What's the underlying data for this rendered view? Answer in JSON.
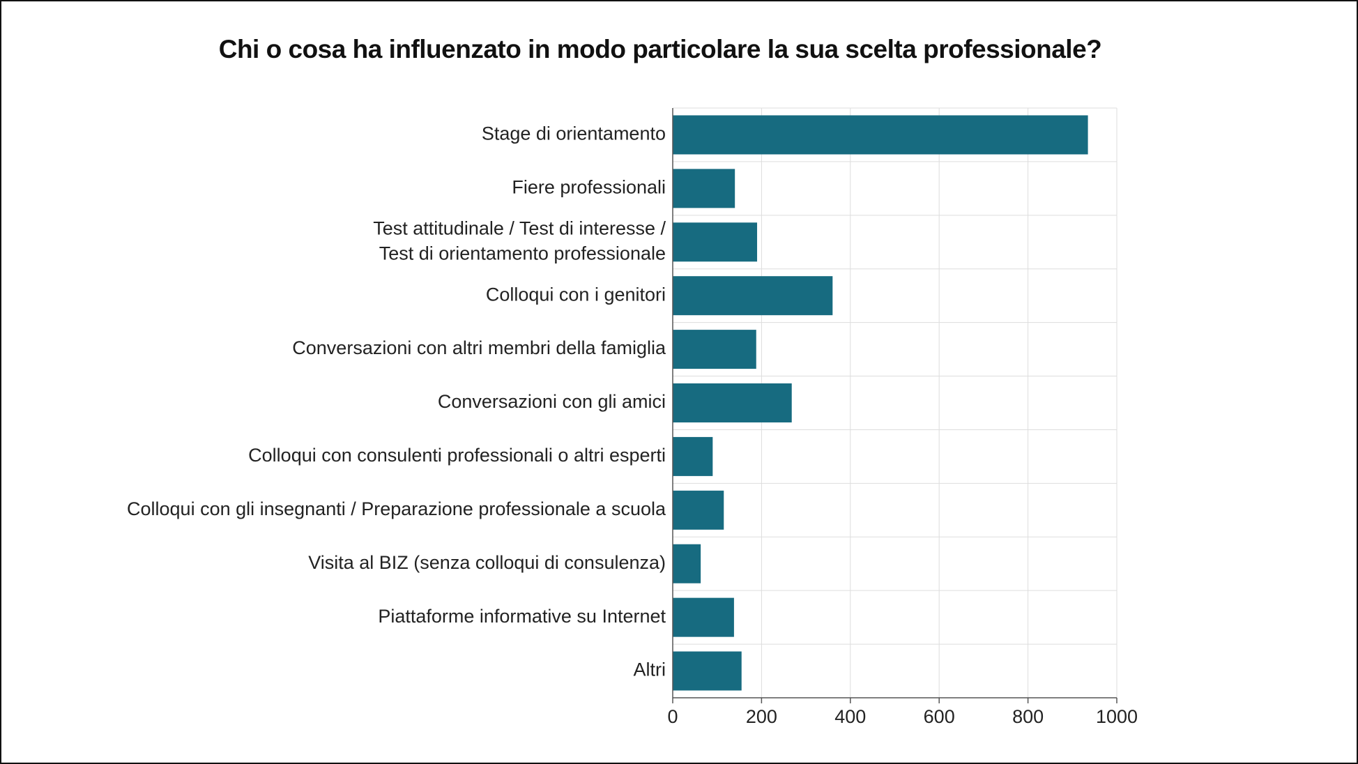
{
  "chart_data": {
    "type": "bar",
    "orientation": "horizontal",
    "title": "Chi o cosa ha influenzato in modo particolare la sua scelta professionale?",
    "categories": [
      [
        "Stage di orientamento"
      ],
      [
        "Fiere professionali"
      ],
      [
        "Test attitudinale / Test di interesse /",
        "Test di orientamento professionale"
      ],
      [
        "Colloqui con i genitori"
      ],
      [
        "Conversazioni con altri membri della famiglia"
      ],
      [
        "Conversazioni con gli amici"
      ],
      [
        "Colloqui con consulenti professionali o altri esperti"
      ],
      [
        "Colloqui con gli insegnanti / Preparazione professionale a scuola"
      ],
      [
        "Visita al BIZ (senza colloqui di consulenza)"
      ],
      [
        "Piattaforme informative su Internet"
      ],
      [
        "Altri"
      ]
    ],
    "values": [
      935,
      140,
      190,
      360,
      188,
      268,
      90,
      115,
      63,
      138,
      155
    ],
    "xlim": [
      0,
      1000
    ],
    "xticks": [
      "0",
      "200",
      "400",
      "600",
      "800",
      "1000"
    ],
    "grid": true,
    "colors": {
      "bar": "#176b80",
      "grid": "#dddddd",
      "axis": "#555555"
    }
  }
}
